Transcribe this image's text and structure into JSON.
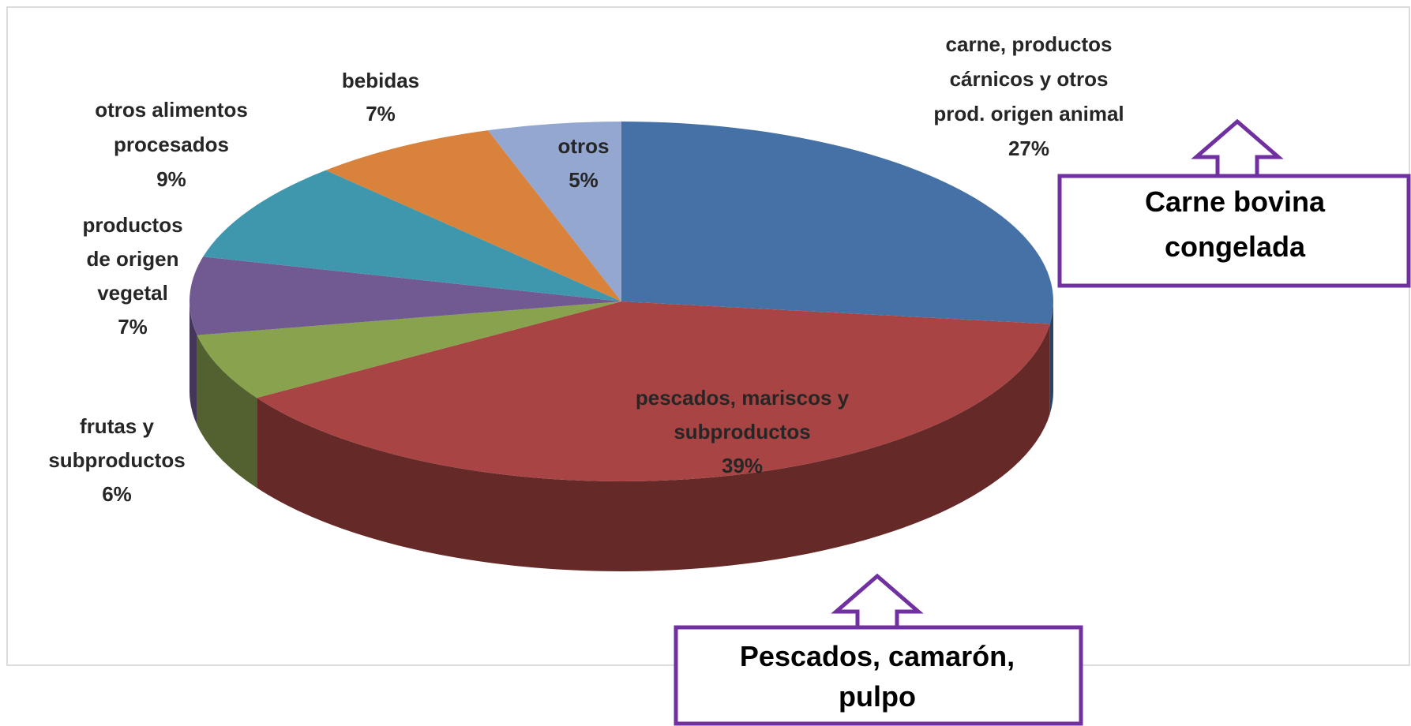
{
  "chart_data": {
    "type": "pie",
    "categories": [
      "carne, productos\ncárnicos y  otros\nprod. origen animal",
      "pescados, mariscos y\nsubproductos",
      "frutas y\nsubproductos",
      "productos\nde origen\nvegetal",
      "otros alimentos\nprocesados",
      "bebidas",
      "otros"
    ],
    "values": [
      27,
      39,
      6,
      7,
      9,
      7,
      5
    ],
    "value_labels": [
      "27%",
      "39%",
      "6%",
      "7%",
      "9%",
      "7%",
      "5%"
    ],
    "colors": [
      "#4571a6",
      "#a84443",
      "#88a24e",
      "#715a92",
      "#3f97ae",
      "#d8823b",
      "#93a7d1"
    ],
    "annotations": [
      {
        "lines": [
          "Carne bovina",
          "congelada"
        ]
      },
      {
        "lines": [
          "Pescados, camarón,",
          "pulpo"
        ]
      }
    ]
  }
}
